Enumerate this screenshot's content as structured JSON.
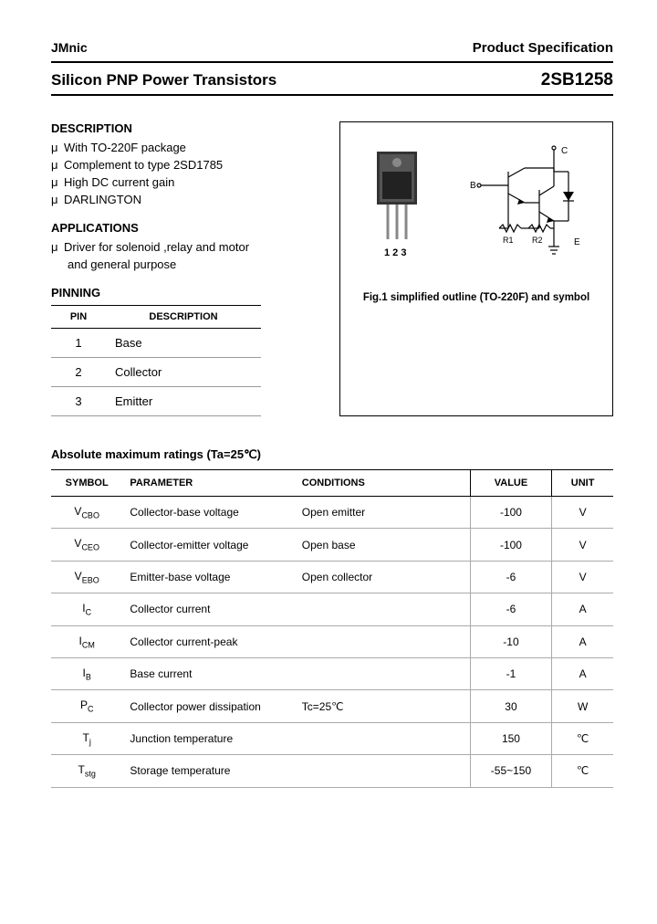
{
  "header": {
    "brand": "JMnic",
    "spec_label": "Product Specification"
  },
  "title": {
    "product": "Silicon PNP Power Transistors",
    "part_number": "2SB1258"
  },
  "description": {
    "heading": "DESCRIPTION",
    "items": [
      "With TO-220F package",
      "Complement to type 2SD1785",
      "High DC current gain",
      "DARLINGTON"
    ]
  },
  "applications": {
    "heading": "APPLICATIONS",
    "line1": "Driver for solenoid ,relay and motor",
    "line2": "and general purpose"
  },
  "pinning": {
    "heading": "PINNING",
    "columns": [
      "PIN",
      "DESCRIPTION"
    ],
    "rows": [
      {
        "pin": "1",
        "desc": "Base"
      },
      {
        "pin": "2",
        "desc": "Collector"
      },
      {
        "pin": "3",
        "desc": "Emitter"
      }
    ]
  },
  "figure": {
    "pin_labels": "1 2 3",
    "terminals": {
      "c": "C",
      "b": "B",
      "e": "E",
      "r1": "R1",
      "r2": "R2"
    },
    "caption": "Fig.1 simplified outline (TO-220F) and symbol"
  },
  "ratings": {
    "title": "Absolute maximum ratings (Ta=25℃)",
    "columns": [
      "SYMBOL",
      "PARAMETER",
      "CONDITIONS",
      "VALUE",
      "UNIT"
    ],
    "rows": [
      {
        "sym_main": "V",
        "sym_sub": "CBO",
        "param": "Collector-base voltage",
        "cond": "Open emitter",
        "val": "-100",
        "unit": "V"
      },
      {
        "sym_main": "V",
        "sym_sub": "CEO",
        "param": "Collector-emitter voltage",
        "cond": "Open base",
        "val": "-100",
        "unit": "V"
      },
      {
        "sym_main": "V",
        "sym_sub": "EBO",
        "param": "Emitter-base voltage",
        "cond": "Open collector",
        "val": "-6",
        "unit": "V"
      },
      {
        "sym_main": "I",
        "sym_sub": "C",
        "param": "Collector current",
        "cond": "",
        "val": "-6",
        "unit": "A"
      },
      {
        "sym_main": "I",
        "sym_sub": "CM",
        "param": "Collector current-peak",
        "cond": "",
        "val": "-10",
        "unit": "A"
      },
      {
        "sym_main": "I",
        "sym_sub": "B",
        "param": "Base current",
        "cond": "",
        "val": "-1",
        "unit": "A"
      },
      {
        "sym_main": "P",
        "sym_sub": "C",
        "param": "Collector power dissipation",
        "cond": "Tc=25℃",
        "val": "30",
        "unit": "W"
      },
      {
        "sym_main": "T",
        "sym_sub": "j",
        "param": "Junction temperature",
        "cond": "",
        "val": "150",
        "unit": "℃"
      },
      {
        "sym_main": "T",
        "sym_sub": "stg",
        "param": "Storage temperature",
        "cond": "",
        "val": "-55~150",
        "unit": "℃"
      }
    ]
  },
  "style": {
    "text_color": "#000000",
    "border_color": "#000000",
    "row_border_color": "#aaaaaa",
    "background": "#ffffff",
    "body_fontsize": 13,
    "title_fontsize": 17,
    "partnum_fontsize": 19
  }
}
